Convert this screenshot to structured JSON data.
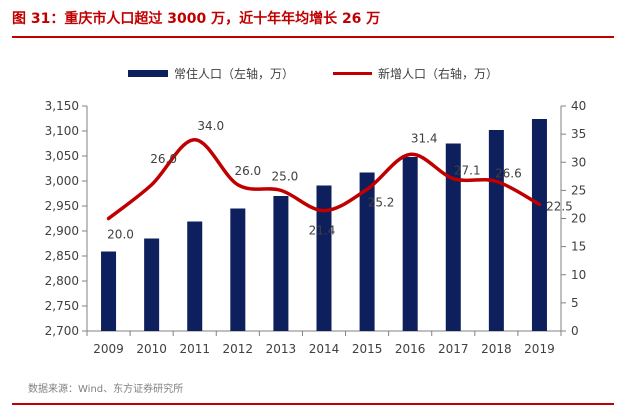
{
  "figure": {
    "title": "图 31：重庆市人口超过 3000 万，近十年年均增长 26 万",
    "source": "数据来源：Wind、东方证券研究所"
  },
  "chart_data": {
    "type": "bar",
    "title": "图 31：重庆市人口超过 3000 万，近十年年均增长 26 万",
    "categories": [
      "2009",
      "2010",
      "2011",
      "2012",
      "2013",
      "2014",
      "2015",
      "2016",
      "2017",
      "2018",
      "2019"
    ],
    "series": [
      {
        "name": "常住人口（左轴，万）",
        "type": "bar",
        "axis": "left",
        "color": "#0d1f5c",
        "values": [
          2859,
          2885,
          2919,
          2945,
          2970,
          2991,
          3017,
          3048,
          3075,
          3102,
          3124
        ]
      },
      {
        "name": "新增人口（右轴，万）",
        "type": "line",
        "axis": "right",
        "color": "#c00000",
        "values": [
          20.0,
          26.0,
          34.0,
          26.0,
          25.0,
          21.4,
          25.2,
          31.4,
          27.1,
          26.6,
          22.5
        ],
        "labels": [
          "20.0",
          "26.0",
          "34.0",
          "26.0",
          "25.0",
          "21.4",
          "25.2",
          "31.4",
          "27.1",
          "26.6",
          "22.5"
        ]
      }
    ],
    "y_left": {
      "ylim": [
        2700,
        3150
      ],
      "ticks": [
        "2,700",
        "2,750",
        "2,800",
        "2,850",
        "2,900",
        "2,950",
        "3,000",
        "3,050",
        "3,100",
        "3,150"
      ],
      "tick_values": [
        2700,
        2750,
        2800,
        2850,
        2900,
        2950,
        3000,
        3050,
        3100,
        3150
      ]
    },
    "y_right": {
      "ylim": [
        0,
        40
      ],
      "ticks": [
        "0",
        "5",
        "10",
        "15",
        "20",
        "25",
        "30",
        "35",
        "40"
      ],
      "tick_values": [
        0,
        5,
        10,
        15,
        20,
        25,
        30,
        35,
        40
      ]
    },
    "legend_position": "top-center",
    "grid": false
  }
}
